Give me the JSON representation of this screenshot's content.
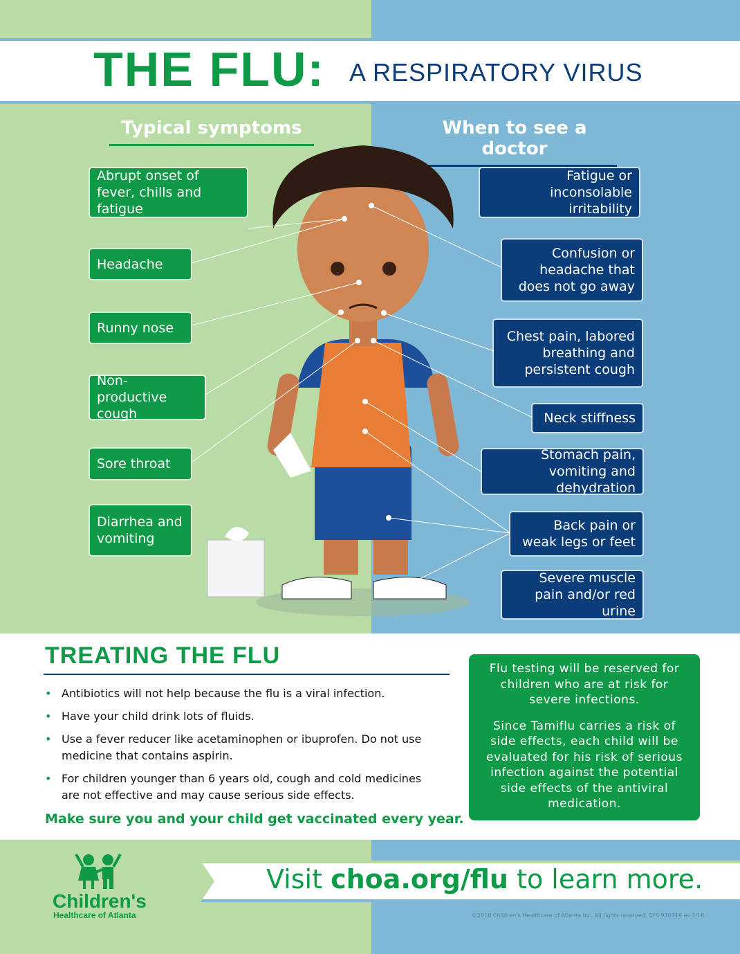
{
  "colors": {
    "light_green": "#b9dba5",
    "light_blue": "#7fb8d6",
    "green": "#0f9a47",
    "navy": "#0a3d7a"
  },
  "header": {
    "title_main": "THE FLU:",
    "title_sub": "A  RESPIRATORY  VIRUS"
  },
  "symptoms": {
    "heading": "Typical symptoms",
    "items": [
      "Abrupt onset of fever, chills and fatigue",
      "Headache",
      "Runny nose",
      "Non-productive cough",
      "Sore throat",
      "Diarrhea and vomiting"
    ]
  },
  "doctor": {
    "heading": "When to see a doctor",
    "items": [
      "Fatigue or inconsolable irritability",
      "Confusion or headache that does not go away",
      "Chest pain, labored breathing and persistent cough",
      "Neck stiffness",
      "Stomach pain, vomiting and dehydration",
      "Back pain or weak legs or feet",
      "Severe muscle pain and/or red urine"
    ]
  },
  "treating": {
    "heading": "TREATING THE FLU",
    "bullets": [
      "Antibiotics will not help because the flu is a viral infection.",
      "Have your child drink lots of fluids.",
      "Use a fever reducer like acetaminophen or ibuprofen. Do not use medicine that contains aspirin.",
      "For children younger than 6 years old, cough and cold medicines are not effective and may cause serious side effects."
    ],
    "vaccinate": "Make sure you and your child get vaccinated every year."
  },
  "info_box": {
    "p1": "Flu testing will be reserved for children who are at risk for severe infections.",
    "p2": "Since Tamiflu carries a risk of side effects, each child will be evaluated for his risk of serious infection against the potential side effects of the antiviral medication."
  },
  "footer": {
    "logo_name": "Children's",
    "logo_sub": "Healthcare of Atlanta",
    "visit_pre": "Visit ",
    "visit_url": "choa.org/flu",
    "visit_post": " to learn more.",
    "copyright": "©2018 Children's Healthcare of Atlanta Inc. All rights reserved. SYS 970316.es 2/18"
  }
}
